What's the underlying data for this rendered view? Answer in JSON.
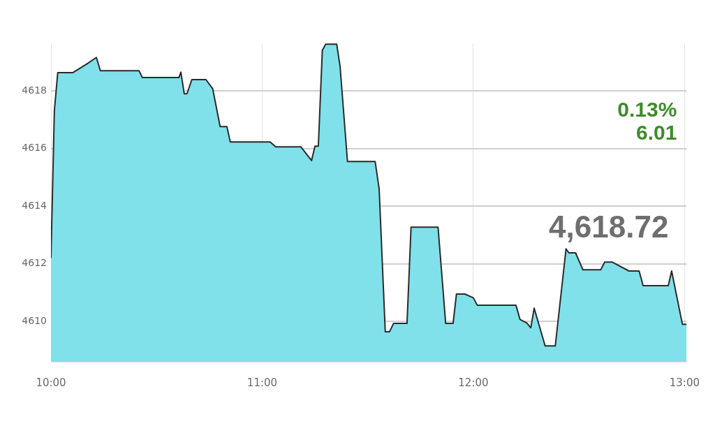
{
  "chart_data": {
    "type": "area",
    "x": [
      10,
      10.016,
      10.032,
      10.103,
      10.167,
      10.215,
      10.234,
      10.417,
      10.433,
      10.606,
      10.615,
      10.631,
      10.644,
      10.667,
      10.734,
      10.766,
      10.801,
      10.833,
      10.849,
      11.038,
      11.064,
      11.183,
      11.234,
      11.25,
      11.266,
      11.285,
      11.301,
      11.353,
      11.369,
      11.404,
      11.535,
      11.554,
      11.583,
      11.603,
      11.622,
      11.686,
      11.705,
      11.833,
      11.869,
      11.904,
      11.92,
      11.96,
      12,
      12.019,
      12.202,
      12.221,
      12.253,
      12.272,
      12.288,
      12.34,
      12.388,
      12.439,
      12.452,
      12.484,
      12.519,
      12.603,
      12.622,
      12.657,
      12.737,
      12.785,
      12.804,
      12.923,
      12.939,
      12.99,
      13.01
    ],
    "series": [
      {
        "color": "#80e1eb",
        "values": [
          4612.2,
          4617.3,
          4618.63,
          4618.63,
          4618.92,
          4619.16,
          4618.7,
          4618.7,
          4618.46,
          4618.46,
          4618.65,
          4617.9,
          4617.9,
          4618.39,
          4618.39,
          4618.07,
          4616.76,
          4616.76,
          4616.23,
          4616.23,
          4616.06,
          4616.06,
          4615.58,
          4616.08,
          4616.08,
          4619.41,
          4619.62,
          4619.62,
          4618.85,
          4615.55,
          4615.55,
          4614.6,
          4609.64,
          4609.64,
          4609.93,
          4609.93,
          4613.27,
          4613.27,
          4609.93,
          4609.93,
          4610.95,
          4610.95,
          4610.82,
          4610.56,
          4610.56,
          4610.07,
          4609.95,
          4609.78,
          4610.46,
          4609.15,
          4609.15,
          4612.52,
          4612.38,
          4612.38,
          4611.79,
          4611.79,
          4612.06,
          4612.06,
          4611.75,
          4611.75,
          4611.24,
          4611.24,
          4611.75,
          4609.9,
          4609.9
        ]
      }
    ],
    "xlim": [
      10,
      13.01
    ],
    "ylim": [
      4608.6,
      4619.65
    ],
    "xticks": [
      {
        "value": 10,
        "label": "10:00"
      },
      {
        "value": 11,
        "label": "11:00"
      },
      {
        "value": 12,
        "label": "12:00"
      },
      {
        "value": 13,
        "label": "13:00"
      }
    ],
    "yticks": [
      4610,
      4612,
      4614,
      4616,
      4618
    ],
    "annotations": [
      "0.13%",
      "6.01",
      "4,618.72"
    ],
    "grid": true,
    "legend": false,
    "marker": "none",
    "line_style": "solid"
  }
}
